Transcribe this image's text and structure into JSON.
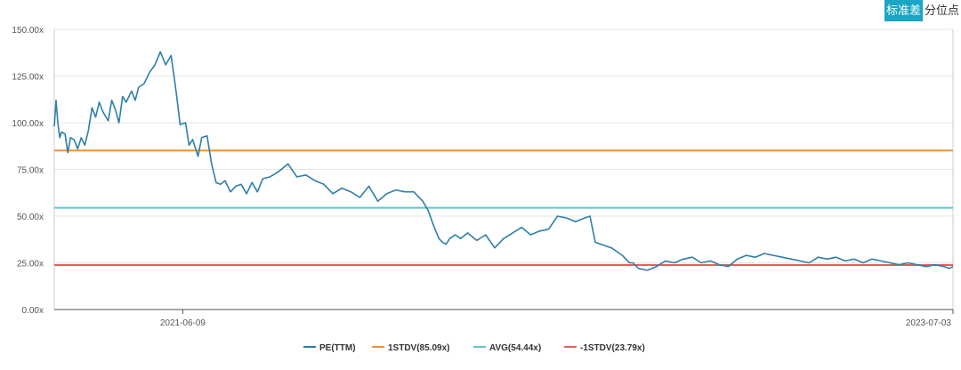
{
  "toggle": {
    "options": [
      "标准差",
      "分位点"
    ],
    "active": 0
  },
  "colors": {
    "pe": "#2d7fa8",
    "plus1": "#f0923a",
    "avg": "#5fc6cf",
    "minus1": "#e2605d",
    "grid": "#e6e6e6",
    "axis": "#555555"
  },
  "chart_data": {
    "type": "line",
    "y_ticks": [
      "0.00x",
      "25.00x",
      "50.00x",
      "75.00x",
      "100.00x",
      "125.00x",
      "150.00x"
    ],
    "ylim": [
      0,
      150
    ],
    "x_tick_labels": [
      "2021-06-09",
      "2023-07-03"
    ],
    "grid": true,
    "legend_position": "bottom",
    "legend": [
      "PE(TTM)",
      "1STDV(85.09x)",
      "AVG(54.44x)",
      "-1STDV(23.79x)"
    ],
    "reference_lines": [
      {
        "name": "1STDV(85.09x)",
        "value": 85.09,
        "color_key": "plus1"
      },
      {
        "name": "AVG(54.44x)",
        "value": 54.44,
        "color_key": "avg"
      },
      {
        "name": "-1STDV(23.79x)",
        "value": 23.79,
        "color_key": "minus1"
      }
    ],
    "series": [
      {
        "name": "PE(TTM)",
        "x_fraction": [
          0.0,
          0.002,
          0.004,
          0.006,
          0.008,
          0.012,
          0.015,
          0.018,
          0.022,
          0.026,
          0.03,
          0.034,
          0.038,
          0.042,
          0.046,
          0.05,
          0.054,
          0.06,
          0.064,
          0.068,
          0.072,
          0.076,
          0.08,
          0.086,
          0.09,
          0.094,
          0.1,
          0.106,
          0.112,
          0.118,
          0.124,
          0.13,
          0.136,
          0.14,
          0.146,
          0.15,
          0.154,
          0.16,
          0.164,
          0.17,
          0.175,
          0.18,
          0.185,
          0.19,
          0.196,
          0.202,
          0.208,
          0.214,
          0.22,
          0.226,
          0.232,
          0.24,
          0.25,
          0.26,
          0.27,
          0.28,
          0.29,
          0.3,
          0.31,
          0.32,
          0.33,
          0.34,
          0.35,
          0.36,
          0.37,
          0.38,
          0.39,
          0.4,
          0.41,
          0.416,
          0.422,
          0.428,
          0.432,
          0.436,
          0.44,
          0.446,
          0.452,
          0.46,
          0.47,
          0.48,
          0.49,
          0.5,
          0.51,
          0.52,
          0.53,
          0.54,
          0.55,
          0.56,
          0.57,
          0.58,
          0.59,
          0.596,
          0.602,
          0.608,
          0.614,
          0.62,
          0.626,
          0.632,
          0.636,
          0.64,
          0.644,
          0.65,
          0.66,
          0.67,
          0.68,
          0.69,
          0.7,
          0.71,
          0.72,
          0.73,
          0.74,
          0.75,
          0.76,
          0.77,
          0.78,
          0.79,
          0.8,
          0.81,
          0.82,
          0.83,
          0.84,
          0.85,
          0.86,
          0.87,
          0.88,
          0.89,
          0.9,
          0.91,
          0.92,
          0.93,
          0.94,
          0.95,
          0.96,
          0.97,
          0.98,
          0.99,
          0.996,
          1.0
        ],
        "values": [
          98,
          112,
          100,
          92,
          95,
          94,
          84,
          92,
          91,
          86,
          92,
          88,
          96,
          108,
          103,
          111,
          106,
          101,
          112,
          107,
          100,
          114,
          111,
          117,
          112,
          119,
          121,
          127,
          131,
          138,
          131,
          136,
          115,
          99,
          100,
          88,
          91,
          82,
          92,
          93,
          78,
          68,
          67,
          69,
          63,
          66,
          67,
          62,
          68,
          63,
          70,
          71,
          74,
          78,
          71,
          72,
          69,
          67,
          62,
          65,
          63,
          60,
          66,
          58,
          62,
          64,
          63,
          63,
          58,
          53,
          45,
          38,
          36,
          35,
          38,
          40,
          38,
          41,
          37,
          40,
          33,
          38,
          41,
          44,
          40,
          42,
          43,
          50,
          49,
          47,
          49,
          50,
          36,
          35,
          34,
          33,
          31,
          29,
          27,
          25,
          25,
          22,
          21,
          23,
          26,
          25,
          27,
          28,
          25,
          26,
          24,
          23,
          27,
          29,
          28,
          30,
          29,
          28,
          27,
          26,
          25,
          28,
          27,
          28,
          26,
          27,
          25,
          27,
          26,
          25,
          24,
          25,
          24,
          23,
          24,
          23,
          22,
          23
        ]
      }
    ]
  }
}
